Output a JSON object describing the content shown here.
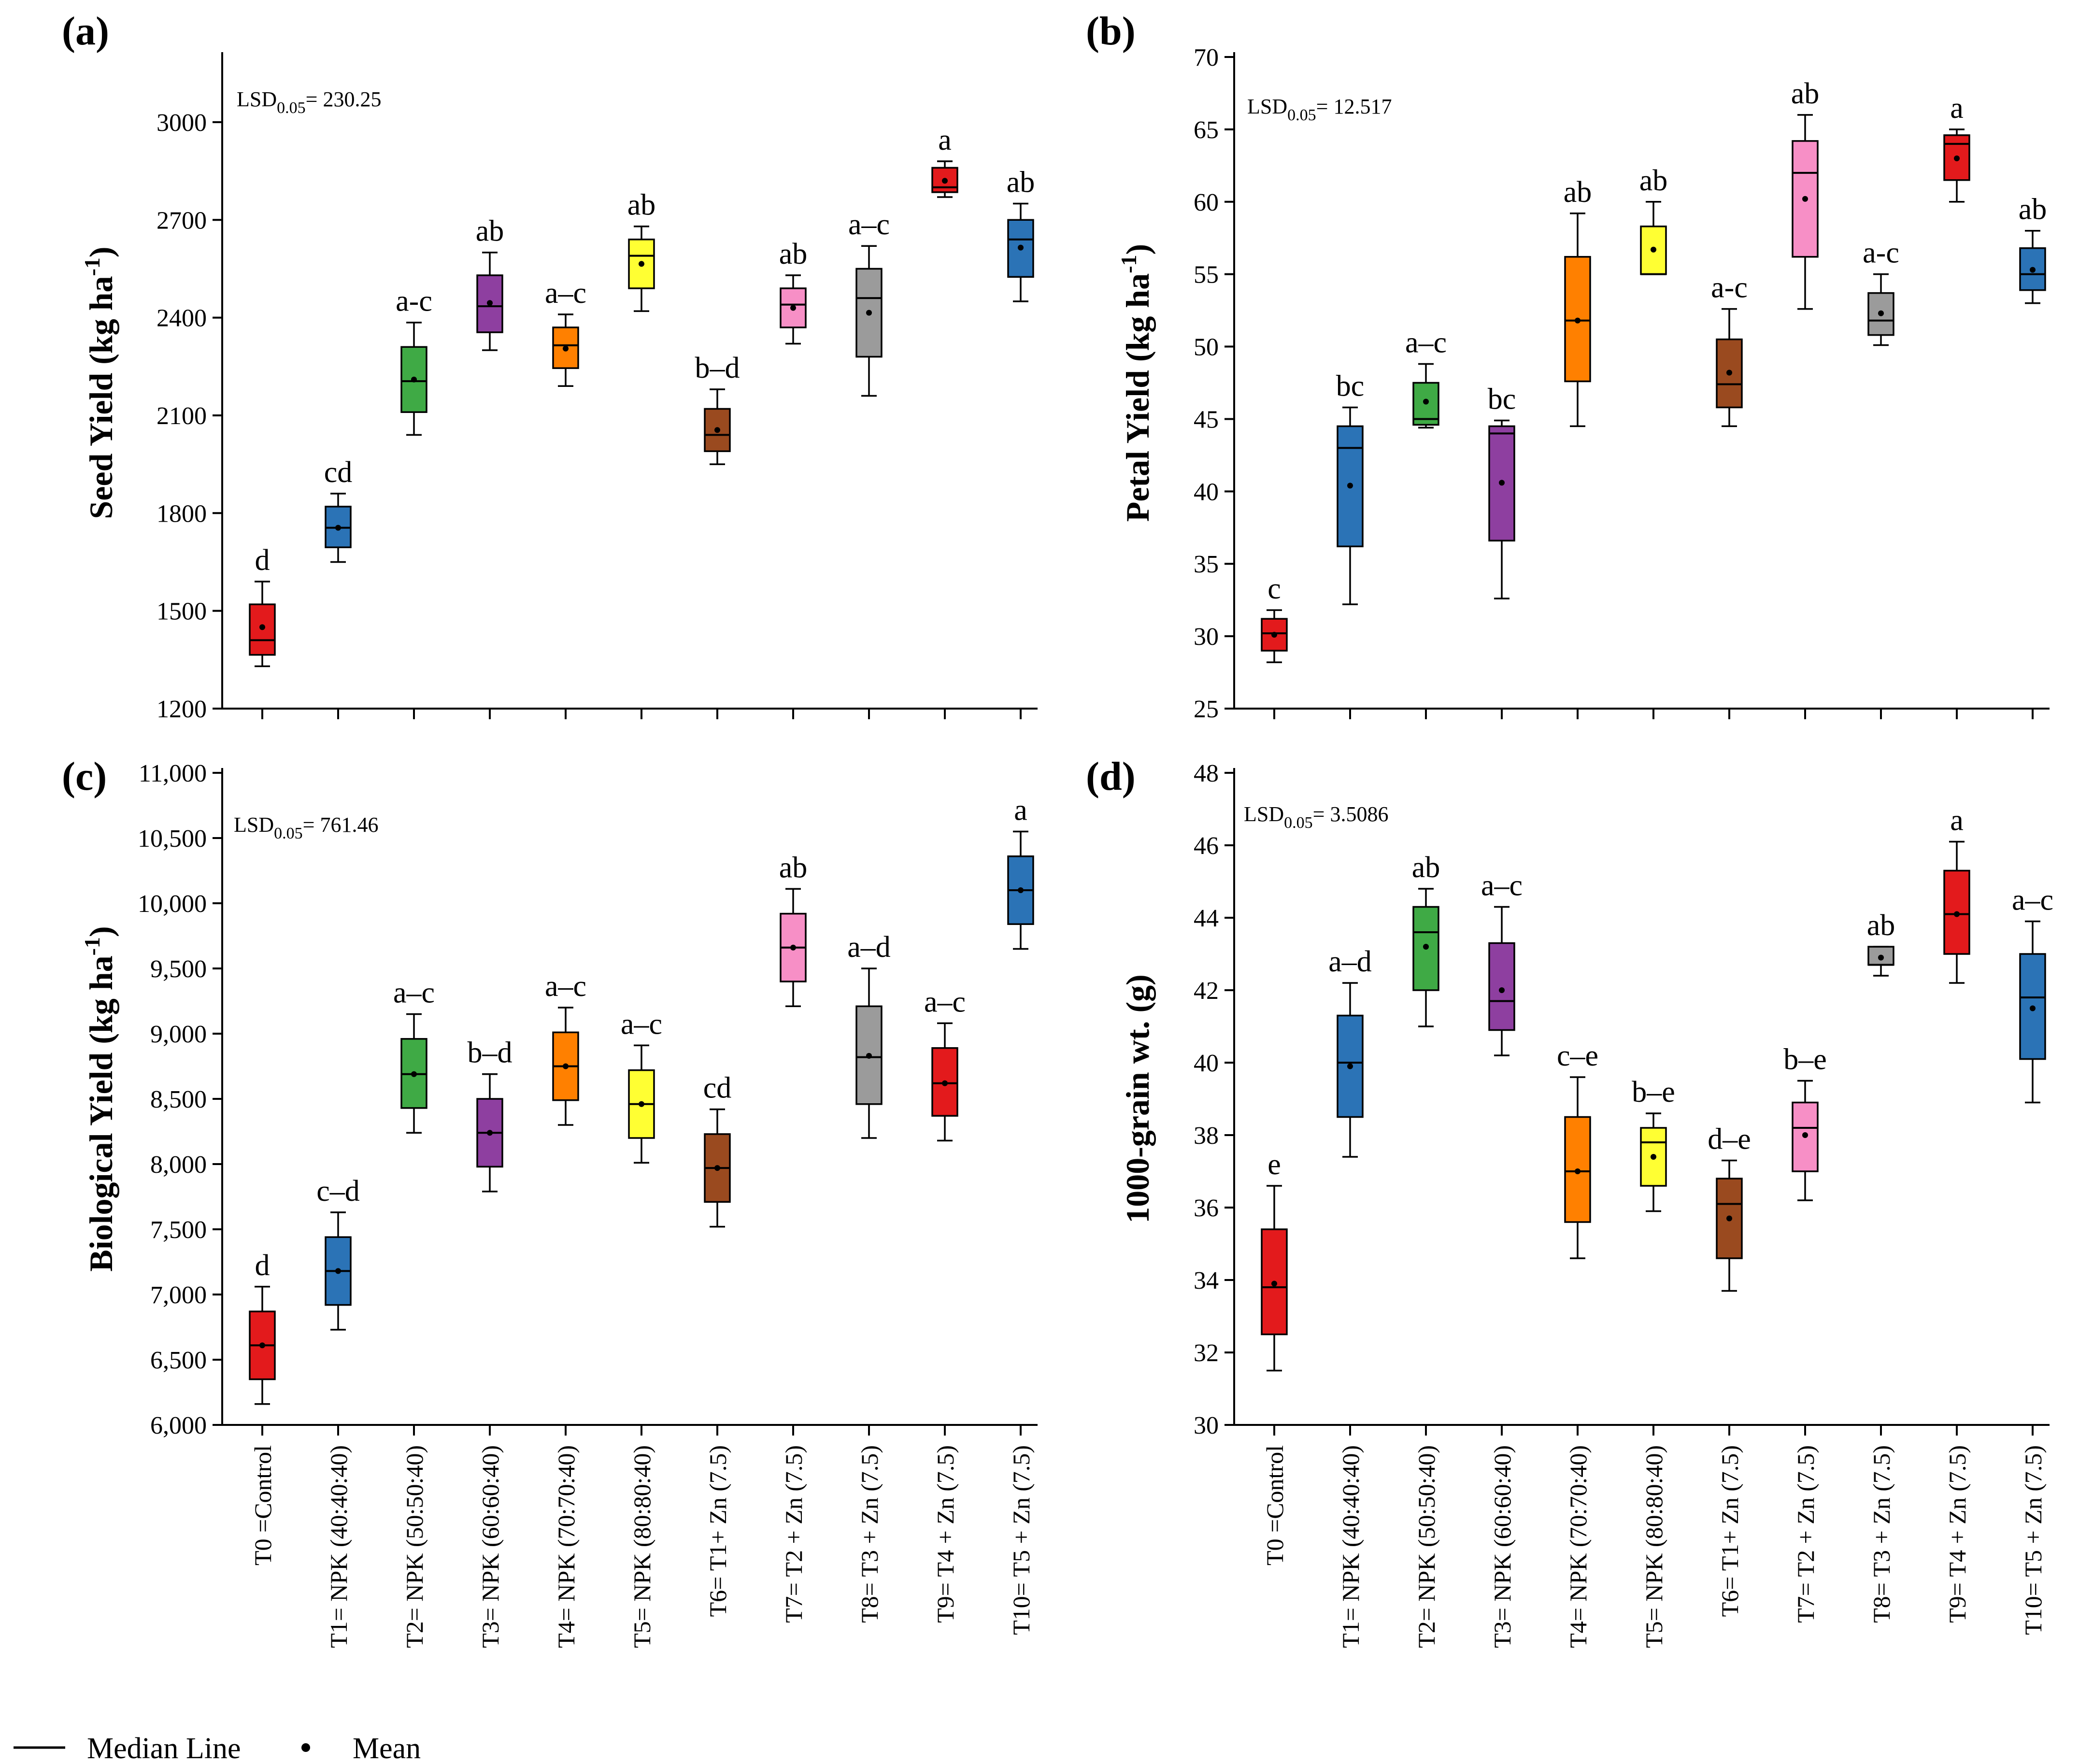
{
  "figure": {
    "treatments": [
      "T0 =Control",
      "T1= NPK (40:40:40)",
      "T2= NPK (50:50:40)",
      "T3= NPK (60:60:40)",
      "T4= NPK (70:70:40)",
      "T5= NPK (80:80:40)",
      "T6= T1+ Zn (7.5)",
      "T7= T2 + Zn (7.5)",
      "T8= T3 + Zn (7.5)",
      "T9= T4 + Zn (7.5)",
      "T10= T5 + Zn (7.5)"
    ],
    "box_colors": [
      "#e31a1c",
      "#2b73b6",
      "#3faa45",
      "#8e3fa0",
      "#ff8000",
      "#ffff33",
      "#9a4a1f",
      "#f78fc6",
      "#9b9b9b",
      "#e31a1c",
      "#2b73b6"
    ],
    "legend": {
      "median_label": "Median Line",
      "mean_label": "Mean"
    }
  },
  "chart_data": [
    {
      "type": "box",
      "panel_label": "(a)",
      "ylabel_main": "Seed Yield (kg ha",
      "ylabel_sup": "-1",
      "ylabel_close": ")",
      "lsd_prefix": "LSD",
      "lsd_sub": "0.05",
      "lsd_value": "= 230.25",
      "ylim": [
        1200,
        3200
      ],
      "yticks": [
        1200,
        1500,
        1800,
        2100,
        2400,
        2700,
        3000
      ],
      "ytick_labels": [
        "1200",
        "1500",
        "1800",
        "2100",
        "2400",
        "2700",
        "3000"
      ],
      "show_xlabels": false,
      "boxes": [
        {
          "whisker_low": 1330,
          "q1": 1365,
          "median": 1410,
          "q3": 1520,
          "whisker_high": 1590,
          "mean": 1450,
          "letter": "d"
        },
        {
          "whisker_low": 1650,
          "q1": 1695,
          "median": 1755,
          "q3": 1820,
          "whisker_high": 1860,
          "mean": 1755,
          "letter": "cd"
        },
        {
          "whisker_low": 2040,
          "q1": 2110,
          "median": 2205,
          "q3": 2310,
          "whisker_high": 2385,
          "mean": 2210,
          "letter": "a-c"
        },
        {
          "whisker_low": 2300,
          "q1": 2355,
          "median": 2435,
          "q3": 2530,
          "whisker_high": 2600,
          "mean": 2445,
          "letter": "ab"
        },
        {
          "whisker_low": 2190,
          "q1": 2245,
          "median": 2315,
          "q3": 2370,
          "whisker_high": 2410,
          "mean": 2305,
          "letter": "a–c"
        },
        {
          "whisker_low": 2420,
          "q1": 2490,
          "median": 2590,
          "q3": 2640,
          "whisker_high": 2680,
          "mean": 2565,
          "letter": "ab"
        },
        {
          "whisker_low": 1950,
          "q1": 1990,
          "median": 2040,
          "q3": 2120,
          "whisker_high": 2180,
          "mean": 2055,
          "letter": "b–d"
        },
        {
          "whisker_low": 2320,
          "q1": 2370,
          "median": 2440,
          "q3": 2490,
          "whisker_high": 2530,
          "mean": 2430,
          "letter": "ab"
        },
        {
          "whisker_low": 2160,
          "q1": 2280,
          "median": 2460,
          "q3": 2550,
          "whisker_high": 2620,
          "mean": 2415,
          "letter": "a–c"
        },
        {
          "whisker_low": 2770,
          "q1": 2785,
          "median": 2800,
          "q3": 2860,
          "whisker_high": 2880,
          "mean": 2820,
          "letter": "a"
        },
        {
          "whisker_low": 2450,
          "q1": 2525,
          "median": 2640,
          "q3": 2700,
          "whisker_high": 2750,
          "mean": 2615,
          "letter": "ab"
        }
      ]
    },
    {
      "type": "box",
      "panel_label": "(b)",
      "ylabel_main": "Petal Yield (kg ha",
      "ylabel_sup": "-1",
      "ylabel_close": ")",
      "lsd_prefix": "LSD",
      "lsd_sub": "0.05",
      "lsd_value": "= 12.517",
      "ylim": [
        25,
        70
      ],
      "yticks": [
        25,
        30,
        35,
        40,
        45,
        50,
        55,
        60,
        65,
        70
      ],
      "ytick_labels": [
        "25",
        "30",
        "35",
        "40",
        "45",
        "50",
        "55",
        "60",
        "65",
        "70"
      ],
      "show_xlabels": false,
      "boxes": [
        {
          "whisker_low": 28.2,
          "q1": 29.0,
          "median": 30.2,
          "q3": 31.2,
          "whisker_high": 31.8,
          "mean": 30.1,
          "letter": "c"
        },
        {
          "whisker_low": 32.2,
          "q1": 36.2,
          "median": 43.0,
          "q3": 44.5,
          "whisker_high": 45.8,
          "mean": 40.4,
          "letter": "bc"
        },
        {
          "whisker_low": 44.4,
          "q1": 44.6,
          "median": 45.0,
          "q3": 47.5,
          "whisker_high": 48.8,
          "mean": 46.2,
          "letter": "a–c"
        },
        {
          "whisker_low": 32.6,
          "q1": 36.6,
          "median": 44.0,
          "q3": 44.5,
          "whisker_high": 44.9,
          "mean": 40.6,
          "letter": "bc"
        },
        {
          "whisker_low": 44.5,
          "q1": 47.6,
          "median": 51.8,
          "q3": 56.2,
          "whisker_high": 59.2,
          "mean": 51.8,
          "letter": "ab"
        },
        {
          "whisker_low": 55.0,
          "q1": 55.0,
          "median": 55.0,
          "q3": 58.3,
          "whisker_high": 60.0,
          "mean": 56.7,
          "letter": "ab"
        },
        {
          "whisker_low": 44.5,
          "q1": 45.8,
          "median": 47.4,
          "q3": 50.5,
          "whisker_high": 52.6,
          "mean": 48.2,
          "letter": "a-c"
        },
        {
          "whisker_low": 52.6,
          "q1": 56.2,
          "median": 62.0,
          "q3": 64.2,
          "whisker_high": 66.0,
          "mean": 60.2,
          "letter": "ab"
        },
        {
          "whisker_low": 50.1,
          "q1": 50.8,
          "median": 51.8,
          "q3": 53.7,
          "whisker_high": 55.0,
          "mean": 52.3,
          "letter": "a-c"
        },
        {
          "whisker_low": 60.0,
          "q1": 61.5,
          "median": 64.0,
          "q3": 64.6,
          "whisker_high": 65.0,
          "mean": 63.0,
          "letter": "a"
        },
        {
          "whisker_low": 53.0,
          "q1": 53.9,
          "median": 55.0,
          "q3": 56.8,
          "whisker_high": 58.0,
          "mean": 55.3,
          "letter": "ab"
        }
      ]
    },
    {
      "type": "box",
      "panel_label": "(c)",
      "ylabel_main": "Biological Yield (kg ha",
      "ylabel_sup": "-1",
      "ylabel_close": ")",
      "lsd_prefix": "LSD",
      "lsd_sub": "0.05",
      "lsd_value": "= 761.46",
      "ylim": [
        6000,
        11000
      ],
      "yticks": [
        6000,
        6500,
        7000,
        7500,
        8000,
        8500,
        9000,
        9500,
        10000,
        10500,
        11000
      ],
      "ytick_labels": [
        "6,000",
        "6,500",
        "7,000",
        "7,500",
        "8,000",
        "8,500",
        "9,000",
        "9,500",
        "10,000",
        "10,500",
        "11,000"
      ],
      "show_xlabels": true,
      "boxes": [
        {
          "whisker_low": 6160,
          "q1": 6350,
          "median": 6610,
          "q3": 6870,
          "whisker_high": 7060,
          "mean": 6610,
          "letter": "d"
        },
        {
          "whisker_low": 6730,
          "q1": 6920,
          "median": 7180,
          "q3": 7440,
          "whisker_high": 7630,
          "mean": 7180,
          "letter": "c–d"
        },
        {
          "whisker_low": 8240,
          "q1": 8430,
          "median": 8690,
          "q3": 8960,
          "whisker_high": 9150,
          "mean": 8690,
          "letter": "a–c"
        },
        {
          "whisker_low": 7790,
          "q1": 7980,
          "median": 8240,
          "q3": 8500,
          "whisker_high": 8690,
          "mean": 8240,
          "letter": "b–d"
        },
        {
          "whisker_low": 8300,
          "q1": 8490,
          "median": 8750,
          "q3": 9010,
          "whisker_high": 9200,
          "mean": 8750,
          "letter": "a–c"
        },
        {
          "whisker_low": 8010,
          "q1": 8200,
          "median": 8460,
          "q3": 8720,
          "whisker_high": 8910,
          "mean": 8460,
          "letter": "a–c"
        },
        {
          "whisker_low": 7520,
          "q1": 7710,
          "median": 7970,
          "q3": 8230,
          "whisker_high": 8420,
          "mean": 7970,
          "letter": "cd"
        },
        {
          "whisker_low": 9210,
          "q1": 9400,
          "median": 9660,
          "q3": 9920,
          "whisker_high": 10110,
          "mean": 9660,
          "letter": "ab"
        },
        {
          "whisker_low": 8200,
          "q1": 8460,
          "median": 8820,
          "q3": 9210,
          "whisker_high": 9500,
          "mean": 8830,
          "letter": "a–d"
        },
        {
          "whisker_low": 8180,
          "q1": 8370,
          "median": 8620,
          "q3": 8890,
          "whisker_high": 9080,
          "mean": 8620,
          "letter": "a–c"
        },
        {
          "whisker_low": 9650,
          "q1": 9840,
          "median": 10100,
          "q3": 10360,
          "whisker_high": 10550,
          "mean": 10100,
          "letter": "a"
        }
      ]
    },
    {
      "type": "box",
      "panel_label": "(d)",
      "ylabel_main": "1000-grain wt. (g)",
      "ylabel_sup": "",
      "ylabel_close": "",
      "lsd_prefix": "LSD",
      "lsd_sub": "0.05",
      "lsd_value": "= 3.5086",
      "ylim": [
        30,
        48
      ],
      "yticks": [
        30,
        32,
        34,
        36,
        38,
        40,
        42,
        44,
        46,
        48
      ],
      "ytick_labels": [
        "30",
        "32",
        "34",
        "36",
        "38",
        "40",
        "42",
        "44",
        "46",
        "48"
      ],
      "show_xlabels": true,
      "boxes": [
        {
          "whisker_low": 31.5,
          "q1": 32.5,
          "median": 33.8,
          "q3": 35.4,
          "whisker_high": 36.6,
          "mean": 33.9,
          "letter": "e"
        },
        {
          "whisker_low": 37.4,
          "q1": 38.5,
          "median": 40.0,
          "q3": 41.3,
          "whisker_high": 42.2,
          "mean": 39.9,
          "letter": "a–d"
        },
        {
          "whisker_low": 41.0,
          "q1": 42.0,
          "median": 43.6,
          "q3": 44.3,
          "whisker_high": 44.8,
          "mean": 43.2,
          "letter": "ab"
        },
        {
          "whisker_low": 40.2,
          "q1": 40.9,
          "median": 41.7,
          "q3": 43.3,
          "whisker_high": 44.3,
          "mean": 42.0,
          "letter": "a–c"
        },
        {
          "whisker_low": 34.6,
          "q1": 35.6,
          "median": 37.0,
          "q3": 38.5,
          "whisker_high": 39.6,
          "mean": 37.0,
          "letter": "c–e"
        },
        {
          "whisker_low": 35.9,
          "q1": 36.6,
          "median": 37.8,
          "q3": 38.2,
          "whisker_high": 38.6,
          "mean": 37.4,
          "letter": "b–e"
        },
        {
          "whisker_low": 33.7,
          "q1": 34.6,
          "median": 36.1,
          "q3": 36.8,
          "whisker_high": 37.3,
          "mean": 35.7,
          "letter": "d–e"
        },
        {
          "whisker_low": 36.2,
          "q1": 37.0,
          "median": 38.2,
          "q3": 38.9,
          "whisker_high": 39.5,
          "mean": 38.0,
          "letter": "b–e"
        },
        {
          "whisker_low": 42.4,
          "q1": 42.7,
          "median": 42.7,
          "q3": 43.2,
          "whisker_high": 43.2,
          "mean": 42.9,
          "letter": "ab"
        },
        {
          "whisker_low": 42.2,
          "q1": 43.0,
          "median": 44.1,
          "q3": 45.3,
          "whisker_high": 46.1,
          "mean": 44.1,
          "letter": "a"
        },
        {
          "whisker_low": 38.9,
          "q1": 40.1,
          "median": 41.8,
          "q3": 43.0,
          "whisker_high": 43.9,
          "mean": 41.5,
          "letter": "a–c"
        }
      ]
    }
  ]
}
